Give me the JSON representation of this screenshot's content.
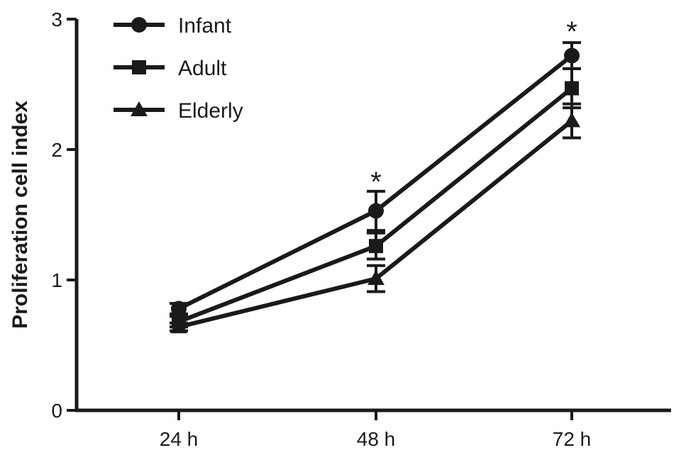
{
  "chart_data": {
    "type": "line",
    "title": "",
    "xlabel": "",
    "ylabel": "Proliferation cell index",
    "categories": [
      "24 h",
      "48 h",
      "72 h"
    ],
    "ylim": [
      0,
      3
    ],
    "yticks": [
      "0",
      "1",
      "2",
      "3"
    ],
    "grid": false,
    "legend": "top-left",
    "series": [
      {
        "name": "Infant",
        "marker": "circle",
        "values": [
          0.78,
          1.53,
          2.72
        ],
        "errors": [
          0.04,
          0.15,
          0.1
        ]
      },
      {
        "name": "Adult",
        "marker": "square",
        "values": [
          0.68,
          1.26,
          2.47
        ],
        "errors": [
          0.04,
          0.1,
          0.15
        ]
      },
      {
        "name": "Elderly",
        "marker": "triangle",
        "values": [
          0.64,
          1.01,
          2.22
        ],
        "errors": [
          0.03,
          0.1,
          0.13
        ]
      }
    ],
    "annotations": [
      {
        "text": "*",
        "category": "48 h",
        "y": 1.8
      },
      {
        "text": "*",
        "category": "72 h",
        "y": 2.95
      }
    ]
  }
}
